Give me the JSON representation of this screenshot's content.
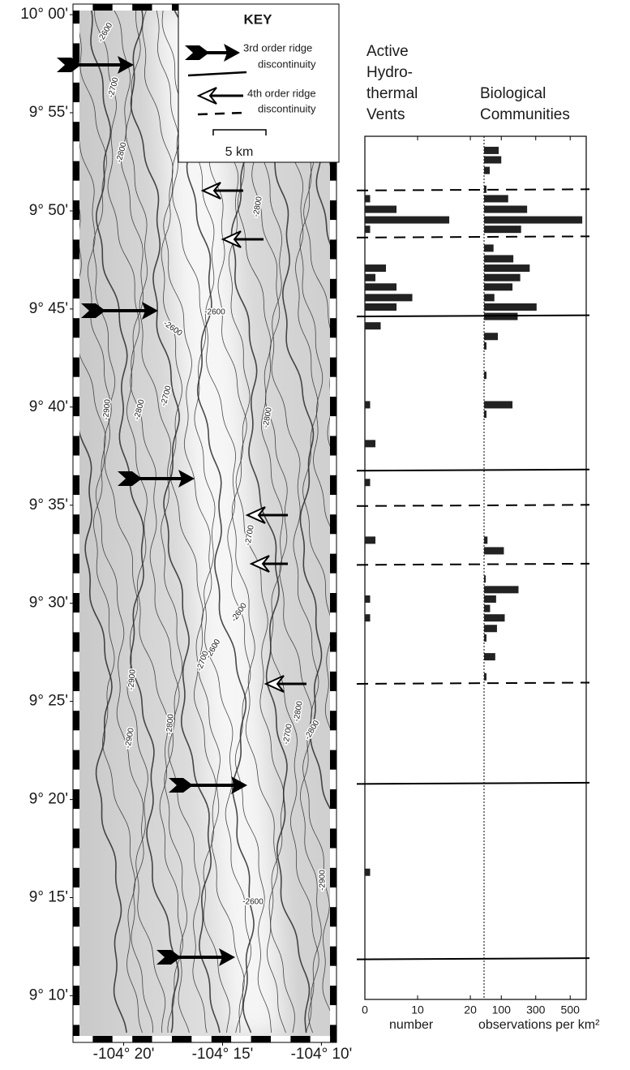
{
  "map": {
    "key": {
      "title": "KEY",
      "entries": [
        [
          "3rd order ridge",
          "discontinuity"
        ],
        [
          "4th order ridge",
          "discontinuity"
        ]
      ],
      "scale_label": "5 km"
    },
    "xlim": [
      -104.376,
      -104.154
    ],
    "ylim": [
      9.127,
      10.009
    ],
    "xticks": [
      {
        "value": -104.3333,
        "label": "-104° 20'"
      },
      {
        "value": -104.25,
        "label": "-104° 15'"
      },
      {
        "value": -104.1667,
        "label": "-104° 10'"
      }
    ],
    "yticks": [
      {
        "value": 10.0,
        "label": "10° 00'"
      },
      {
        "value": 9.9167,
        "label": "9° 55'"
      },
      {
        "value": 9.8333,
        "label": "9° 50'"
      },
      {
        "value": 9.75,
        "label": "9° 45'"
      },
      {
        "value": 9.6667,
        "label": "9° 40'"
      },
      {
        "value": 9.5833,
        "label": "9° 35'"
      },
      {
        "value": 9.5,
        "label": "9° 30'"
      },
      {
        "value": 9.4167,
        "label": "9° 25'"
      },
      {
        "value": 9.3333,
        "label": "9° 20'"
      },
      {
        "value": 9.25,
        "label": "9° 15'"
      },
      {
        "value": 9.1667,
        "label": "9° 10'"
      }
    ],
    "contour_labels": [
      "-2600",
      "-2700",
      "-2800",
      "-2800",
      "-2600",
      "-2600",
      "-2900",
      "-2800",
      "-2700",
      "-2800",
      "-2700",
      "-2600",
      "-2600",
      "-2700",
      "-2900",
      "-2800",
      "-2900",
      "-2800",
      "-2800",
      "-2700",
      "-2600",
      "-2900"
    ]
  },
  "discontinuities": [
    {
      "lat": 9.851,
      "style": "dashed"
    },
    {
      "lat": 9.811,
      "style": "dashed"
    },
    {
      "lat": 9.744,
      "style": "solid"
    },
    {
      "lat": 9.613,
      "style": "solid"
    },
    {
      "lat": 9.583,
      "style": "dashed"
    },
    {
      "lat": 9.533,
      "style": "dashed"
    },
    {
      "lat": 9.432,
      "style": "dashed"
    },
    {
      "lat": 9.347,
      "style": "solid"
    },
    {
      "lat": 9.198,
      "style": "solid"
    }
  ],
  "chart_data": [
    {
      "type": "bar",
      "horizontal": true,
      "title": [
        "Active",
        "Hydro-",
        "thermal",
        "Vents"
      ],
      "xlabel": "number",
      "x": [
        9.844,
        9.835,
        9.826,
        9.818,
        9.785,
        9.777,
        9.769,
        9.76,
        9.752,
        9.736,
        9.669,
        9.636,
        9.603,
        9.554,
        9.504,
        9.488,
        9.272
      ],
      "values": [
        1,
        6,
        16,
        1,
        4,
        2,
        6,
        9,
        6,
        3,
        1,
        2,
        1,
        2,
        1,
        1,
        1
      ],
      "color": "#222222",
      "xlim": [
        0,
        22.6
      ],
      "xticks": [
        0,
        10,
        20
      ],
      "ylim": [
        9.164,
        9.897
      ]
    },
    {
      "type": "bar",
      "horizontal": true,
      "title": [
        "Biological",
        "Communities"
      ],
      "xlabel": "observations per km²",
      "x": [
        9.885,
        9.877,
        9.868,
        9.852,
        9.844,
        9.835,
        9.826,
        9.818,
        9.802,
        9.793,
        9.785,
        9.777,
        9.769,
        9.76,
        9.752,
        9.744,
        9.727,
        9.719,
        9.694,
        9.669,
        9.661,
        9.554,
        9.545,
        9.521,
        9.512,
        9.504,
        9.496,
        9.488,
        9.479,
        9.471,
        9.455,
        9.438
      ],
      "values": [
        85,
        100,
        33,
        14,
        140,
        250,
        570,
        215,
        55,
        170,
        265,
        210,
        165,
        60,
        305,
        195,
        80,
        14,
        14,
        165,
        14,
        20,
        115,
        10,
        200,
        70,
        35,
        120,
        75,
        14,
        65,
        14
      ],
      "color": "#222222",
      "xlim": [
        0,
        593
      ],
      "xticks": [
        100,
        300,
        500
      ],
      "ylim": [
        9.164,
        9.897
      ]
    }
  ]
}
